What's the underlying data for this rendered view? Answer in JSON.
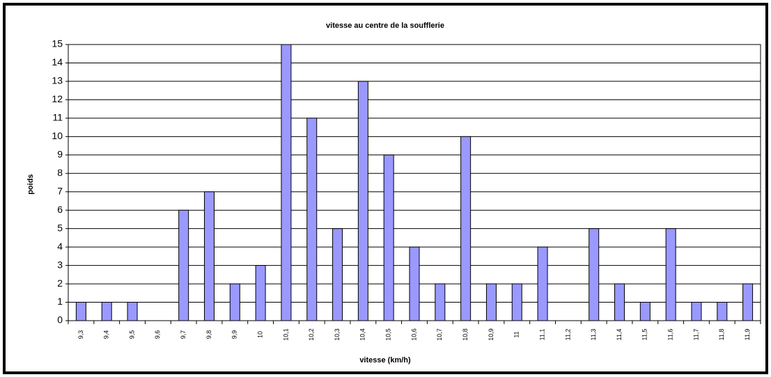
{
  "chart_data": {
    "type": "bar",
    "title": "vitesse au centre de la soufflerie",
    "x_label": "vitesse (km/h)",
    "y_label": "poids",
    "categories": [
      "9,3",
      "9,4",
      "9,5",
      "9,6",
      "9,7",
      "9,8",
      "9,9",
      "10",
      "10,1",
      "10,2",
      "10,3",
      "10,4",
      "10,5",
      "10,6",
      "10,7",
      "10,8",
      "10,9",
      "11",
      "11,1",
      "11,2",
      "11,3",
      "11,4",
      "11,5",
      "11,6",
      "11,7",
      "11,8",
      "11,9"
    ],
    "values": [
      1,
      1,
      1,
      0,
      6,
      7,
      2,
      3,
      15,
      11,
      5,
      13,
      9,
      4,
      2,
      10,
      2,
      2,
      4,
      0,
      5,
      2,
      1,
      5,
      1,
      1,
      2
    ],
    "color": "#9999ff",
    "ylim": [
      0,
      15
    ],
    "yticks": [
      0,
      1,
      2,
      3,
      4,
      5,
      6,
      7,
      8,
      9,
      10,
      11,
      12,
      13,
      14,
      15
    ],
    "grid": true
  }
}
